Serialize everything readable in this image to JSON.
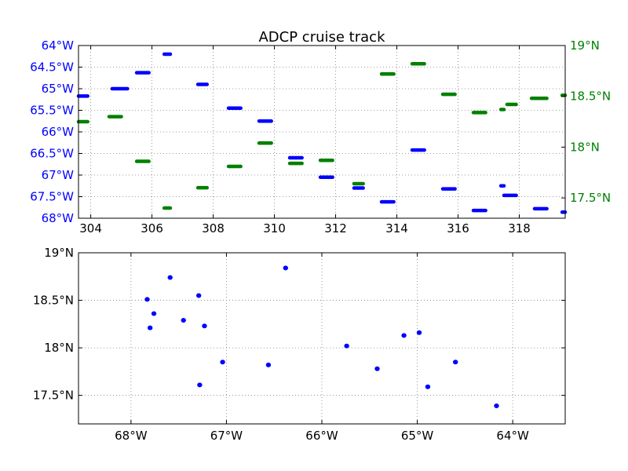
{
  "colors": {
    "lon_series": "#0000ff",
    "lat_series": "#008000",
    "axes": "#000000",
    "grid": "#808080"
  },
  "chart_data": [
    {
      "type": "scatter",
      "title": "ADCP cruise track",
      "x_ticks": [
        "304",
        "306",
        "308",
        "310",
        "312",
        "314",
        "316",
        "318"
      ],
      "x_tick_values": [
        304,
        306,
        308,
        310,
        312,
        314,
        316,
        318
      ],
      "xlim": [
        303.6,
        319.5
      ],
      "y_left_ticks": [
        "64°W",
        "64.5°W",
        "65°W",
        "65.5°W",
        "66°W",
        "66.5°W",
        "67°W",
        "67.5°W",
        "68°W"
      ],
      "y_left_tick_values": [
        64,
        64.5,
        65,
        65.5,
        66,
        66.5,
        67,
        67.5,
        68
      ],
      "y_left_lim": [
        64,
        68
      ],
      "y_left_inverted": true,
      "y_right_ticks": [
        "19°N",
        "18.5°N",
        "18°N",
        "17.5°N"
      ],
      "y_right_tick_values": [
        19,
        18.5,
        18,
        17.5
      ],
      "y_right_lim": [
        17.3,
        19
      ],
      "grid": true,
      "series": [
        {
          "axis": "left",
          "segments": [
            [
              303.6,
              303.9,
              65.17
            ],
            [
              304.7,
              305.2,
              65.0
            ],
            [
              305.5,
              305.9,
              64.63
            ],
            [
              306.4,
              306.6,
              64.2
            ],
            [
              307.5,
              307.8,
              64.9
            ],
            [
              308.5,
              308.9,
              65.45
            ],
            [
              309.5,
              309.9,
              65.75
            ],
            [
              310.5,
              310.9,
              66.6
            ],
            [
              311.5,
              311.9,
              67.05
            ],
            [
              312.6,
              312.9,
              67.3
            ],
            [
              313.5,
              313.9,
              67.62
            ],
            [
              314.5,
              314.9,
              66.42
            ],
            [
              315.5,
              315.9,
              67.32
            ],
            [
              316.5,
              316.9,
              67.82
            ],
            [
              317.4,
              317.5,
              67.25
            ],
            [
              317.5,
              317.9,
              67.47
            ],
            [
              318.5,
              318.9,
              67.78
            ],
            [
              319.4,
              319.5,
              67.86
            ]
          ]
        },
        {
          "axis": "right",
          "segments": [
            [
              303.6,
              303.9,
              18.25
            ],
            [
              304.6,
              305.0,
              18.3
            ],
            [
              305.5,
              305.9,
              17.86
            ],
            [
              306.4,
              306.6,
              17.4
            ],
            [
              307.5,
              307.8,
              17.6
            ],
            [
              308.5,
              308.9,
              17.81
            ],
            [
              309.5,
              309.9,
              18.04
            ],
            [
              310.5,
              310.9,
              17.84
            ],
            [
              311.5,
              311.9,
              17.87
            ],
            [
              312.6,
              312.9,
              17.64
            ],
            [
              313.5,
              313.9,
              18.72
            ],
            [
              314.5,
              314.9,
              18.82
            ],
            [
              315.5,
              315.9,
              18.52
            ],
            [
              316.5,
              316.9,
              18.34
            ],
            [
              317.4,
              317.5,
              18.37
            ],
            [
              317.6,
              317.9,
              18.42
            ],
            [
              318.4,
              318.9,
              18.48
            ],
            [
              319.4,
              319.5,
              18.51
            ]
          ]
        }
      ]
    },
    {
      "type": "scatter",
      "x_ticks": [
        "68°W",
        "67°W",
        "66°W",
        "65°W",
        "64°W"
      ],
      "x_tick_values": [
        -68,
        -67,
        -66,
        -65,
        -64
      ],
      "xlim": [
        -68.55,
        -63.45
      ],
      "y_ticks": [
        "19°N",
        "18.5°N",
        "18°N",
        "17.5°N"
      ],
      "y_tick_values": [
        19,
        18.5,
        18,
        17.5
      ],
      "ylim": [
        17.2,
        19
      ],
      "grid": true,
      "points": [
        [
          -67.83,
          18.51
        ],
        [
          -67.8,
          18.21
        ],
        [
          -67.76,
          18.36
        ],
        [
          -67.59,
          18.74
        ],
        [
          -67.45,
          18.29
        ],
        [
          -67.29,
          18.55
        ],
        [
          -67.23,
          18.23
        ],
        [
          -67.28,
          17.61
        ],
        [
          -67.04,
          17.85
        ],
        [
          -66.56,
          17.82
        ],
        [
          -66.38,
          18.84
        ],
        [
          -65.74,
          18.02
        ],
        [
          -65.42,
          17.78
        ],
        [
          -65.14,
          18.13
        ],
        [
          -64.98,
          18.16
        ],
        [
          -64.89,
          17.59
        ],
        [
          -64.6,
          17.85
        ],
        [
          -64.17,
          17.39
        ]
      ]
    }
  ]
}
